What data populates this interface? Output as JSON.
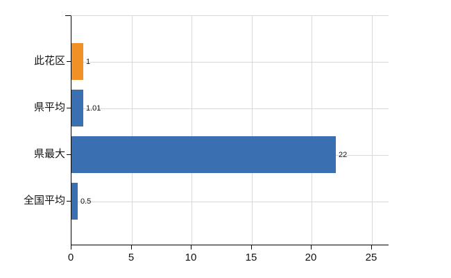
{
  "chart_data": {
    "type": "bar",
    "orientation": "horizontal",
    "title": "",
    "xlabel": "",
    "ylabel": "",
    "categories": [
      "此花区",
      "県平均",
      "県最大",
      "全国平均"
    ],
    "values": [
      1,
      1.01,
      22,
      0.5
    ],
    "value_labels": [
      "1",
      "1.01",
      "22",
      "0.5"
    ],
    "bar_colors": [
      "#f09128",
      "#3a6fb1",
      "#3a6fb1",
      "#3a6fb1"
    ],
    "highlight_index": 0,
    "x_ticks": [
      0,
      5,
      10,
      15,
      20,
      25
    ],
    "x_tick_labels": [
      "0",
      "5",
      "10",
      "15",
      "20",
      "25"
    ],
    "xlim": [
      0,
      26.4
    ],
    "grid": true,
    "legend": false,
    "colors": {
      "highlight": "#f09128",
      "series": "#3a6fb1",
      "grid": "#d8d8d8",
      "axis": "#000000",
      "text": "#111111"
    }
  }
}
